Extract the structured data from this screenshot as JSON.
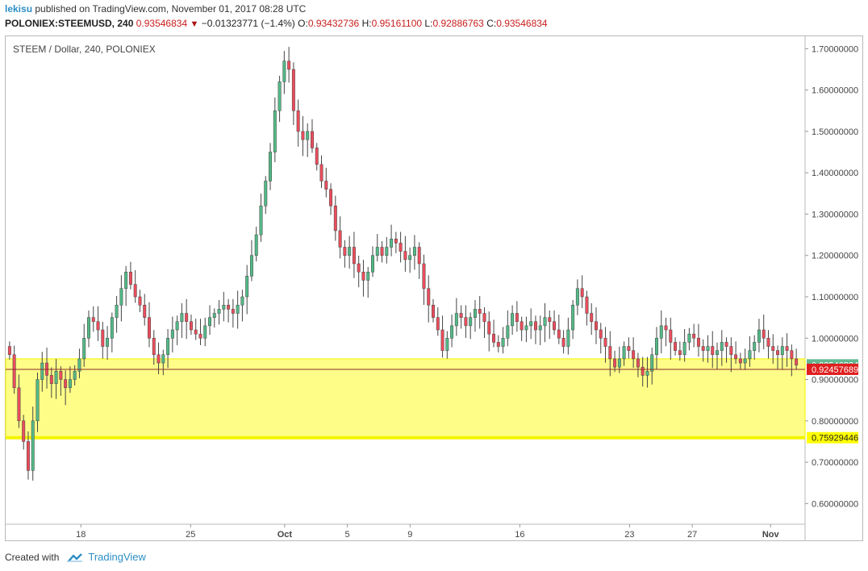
{
  "header": {
    "author": "lekisu",
    "published_text": "published on TradingView.com, November 01, 2017 08:28 UTC",
    "symbol": "POLONIEX:STEEMUSD, 240",
    "last": "0.93546834",
    "change": "−0.01323771 (−1.4%)",
    "o_label": "O:",
    "o_value": "0.93432736",
    "h_label": "H:",
    "h_value": "0.95161100",
    "l_label": "L:",
    "l_value": "0.92886763",
    "c_label": "C:",
    "c_value": "0.93546834"
  },
  "footer": {
    "created_with": "Created with",
    "brand": "TradingView"
  },
  "colors": {
    "up": "#53b987",
    "down": "#eb4d5c",
    "wick": "#444444",
    "zone_fill": "#fdfd88",
    "zone_border": "#f4f400",
    "price_line": "#8b2b2b",
    "last_badge": "#63b892",
    "red_badge": "#e01f1f",
    "yellow_badge": "#ffff00"
  },
  "chart_data": {
    "type": "candlestick",
    "title": "STEEM / Dollar, 240, POLONIEX",
    "ylim": [
      0.55,
      1.73
    ],
    "y_ticks": [
      "0.60000000",
      "0.70000000",
      "0.80000000",
      "0.90000000",
      "1.00000000",
      "1.10000000",
      "1.20000000",
      "1.30000000",
      "1.40000000",
      "1.50000000",
      "1.60000000",
      "1.70000000"
    ],
    "x_ticks": [
      "18",
      "25",
      "Oct",
      "5",
      "9",
      "16",
      "23",
      "27",
      "Nov"
    ],
    "x_tick_days": [
      18,
      25,
      31,
      35,
      39,
      46,
      53,
      57,
      62
    ],
    "x_range_days": [
      13.2,
      64.2
    ],
    "last_price": "0.93546834",
    "horizontal_level": "0.92457689",
    "support_level": "0.75929446",
    "support_zone": [
      0.75929446,
      0.95
    ],
    "closes": [
      0.96,
      0.88,
      0.8,
      0.75,
      0.68,
      0.8,
      0.9,
      0.94,
      0.91,
      0.89,
      0.92,
      0.9,
      0.88,
      0.9,
      0.92,
      0.95,
      1.0,
      1.05,
      1.04,
      1.02,
      0.98,
      1.0,
      1.05,
      1.08,
      1.12,
      1.16,
      1.13,
      1.1,
      1.08,
      1.05,
      1.0,
      0.96,
      0.94,
      0.96,
      1.0,
      1.02,
      1.04,
      1.06,
      1.04,
      1.02,
      1.01,
      1.0,
      1.03,
      1.05,
      1.06,
      1.07,
      1.08,
      1.07,
      1.06,
      1.08,
      1.1,
      1.15,
      1.2,
      1.25,
      1.32,
      1.38,
      1.45,
      1.55,
      1.62,
      1.67,
      1.65,
      1.55,
      1.5,
      1.48,
      1.5,
      1.46,
      1.42,
      1.38,
      1.36,
      1.32,
      1.26,
      1.22,
      1.2,
      1.22,
      1.18,
      1.16,
      1.14,
      1.16,
      1.2,
      1.22,
      1.2,
      1.22,
      1.24,
      1.23,
      1.21,
      1.19,
      1.2,
      1.22,
      1.18,
      1.12,
      1.08,
      1.05,
      1.02,
      0.97,
      1.0,
      1.03,
      1.06,
      1.05,
      1.03,
      1.05,
      1.07,
      1.06,
      1.04,
      1.01,
      0.99,
      0.98,
      1.0,
      1.03,
      1.06,
      1.04,
      1.02,
      1.03,
      1.04,
      1.02,
      1.03,
      1.05,
      1.04,
      1.02,
      1.0,
      0.98,
      1.02,
      1.08,
      1.12,
      1.1,
      1.06,
      1.04,
      1.02,
      1.0,
      0.98,
      0.95,
      0.93,
      0.95,
      0.98,
      0.97,
      0.95,
      0.93,
      0.91,
      0.92,
      0.96,
      1.0,
      1.03,
      1.02,
      0.99,
      0.97,
      0.96,
      0.99,
      1.01,
      1.0,
      0.98,
      0.97,
      0.98,
      0.96,
      0.97,
      0.99,
      0.98,
      0.96,
      0.95,
      0.94,
      0.95,
      0.97,
      0.99,
      1.02,
      1.0,
      0.98,
      0.97,
      0.96,
      0.98,
      0.97,
      0.95,
      0.935
    ]
  }
}
